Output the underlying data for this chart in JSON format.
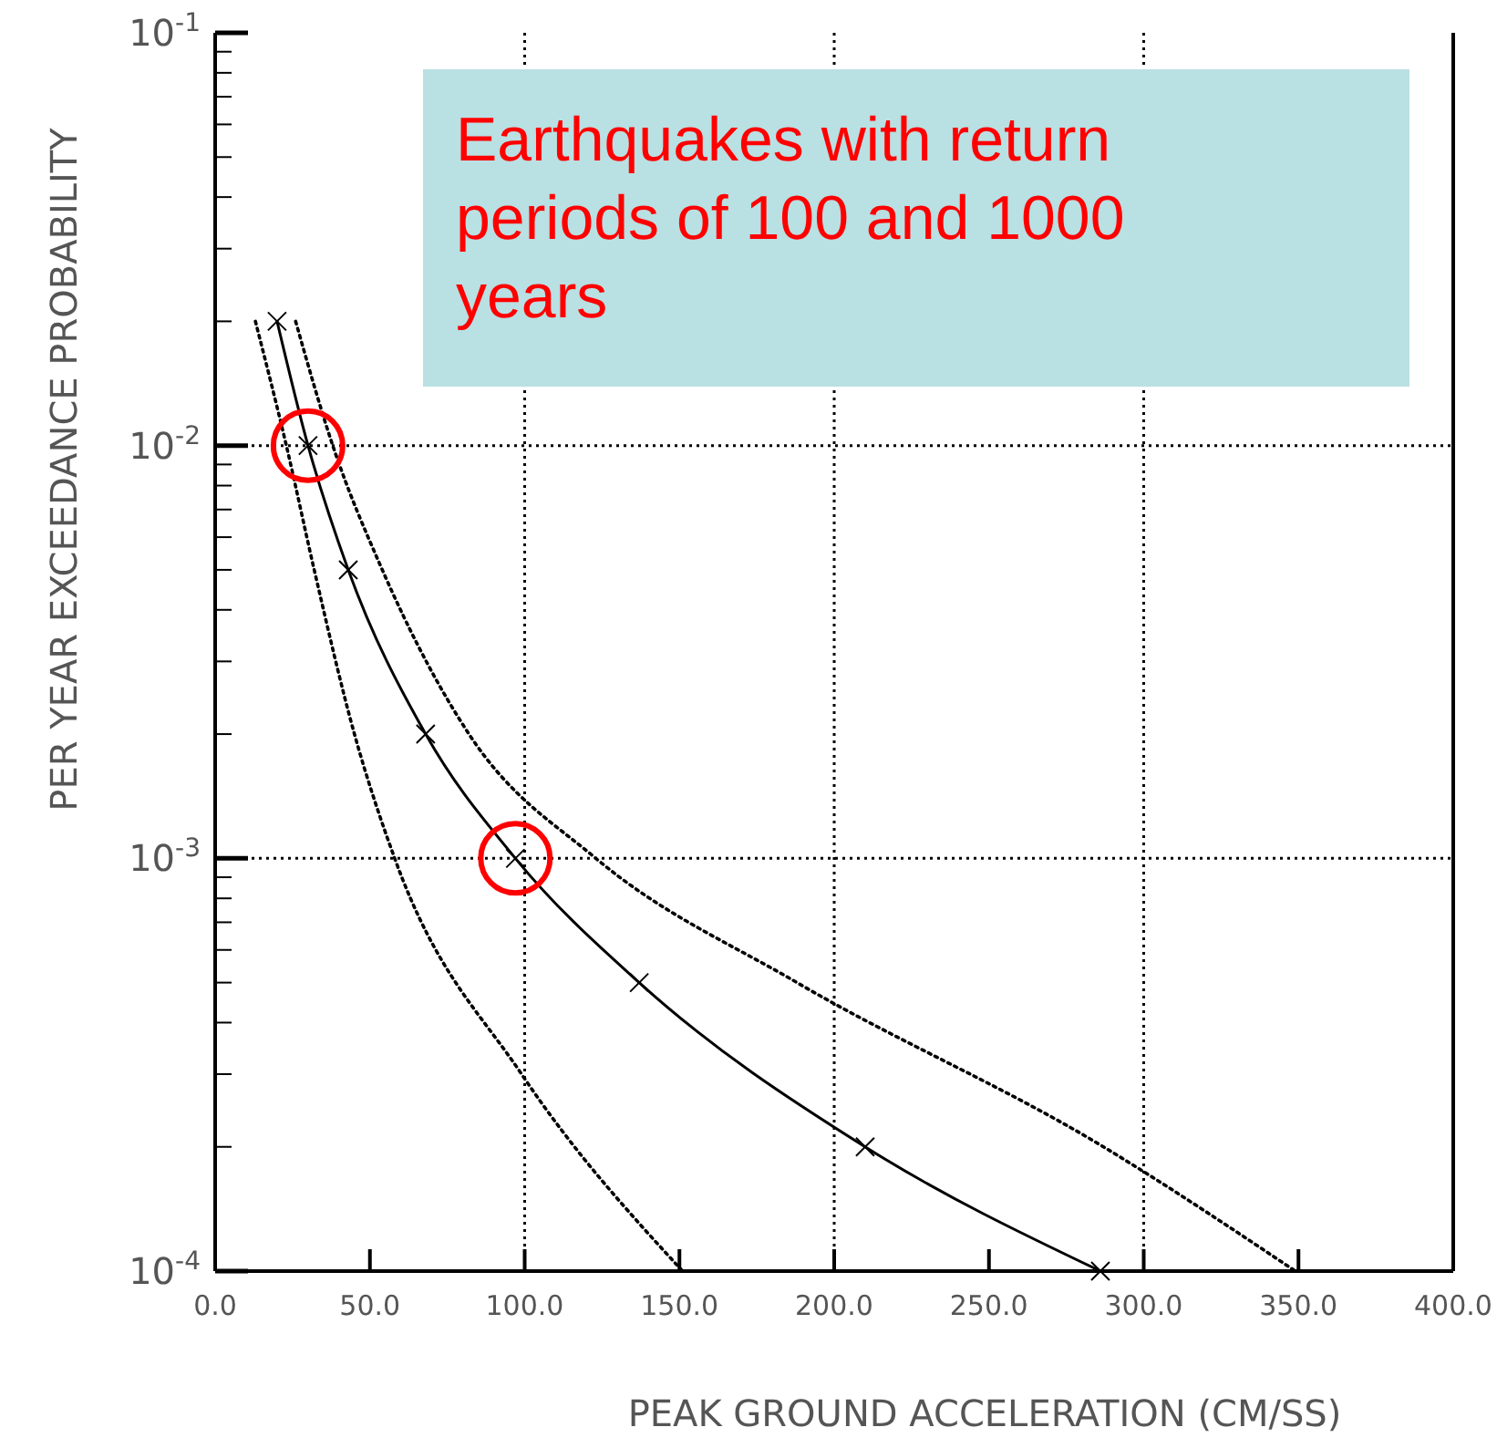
{
  "chart_data": {
    "type": "line",
    "xlabel": "PEAK GROUND ACCELERATION (CM/SS)",
    "ylabel": "PER YEAR EXCEEDANCE PROBABILITY",
    "annotations": [
      "Earthquakes with return periods of 100 and 1000 years"
    ],
    "log": "y",
    "grid": false,
    "xlim": [
      0,
      400
    ],
    "ylim": [
      0.0001,
      0.1
    ],
    "xticks": [
      {
        "value": 0,
        "label": "0.0"
      },
      {
        "value": 50,
        "label": "50.0"
      },
      {
        "value": 100,
        "label": "100.0"
      },
      {
        "value": 150,
        "label": "150.0"
      },
      {
        "value": 200,
        "label": "200.0"
      },
      {
        "value": 250,
        "label": "250.0"
      },
      {
        "value": 300,
        "label": "300.0"
      },
      {
        "value": 350,
        "label": "350.0"
      },
      {
        "value": 400,
        "label": "400.0"
      }
    ],
    "yticks": [
      {
        "value": 0.0001,
        "label": "10$^{-4}$"
      },
      {
        "value": 0.0002,
        "label": null
      },
      {
        "value": 0.0003,
        "label": null
      },
      {
        "value": 0.0004,
        "label": null
      },
      {
        "value": 0.0005,
        "label": null
      },
      {
        "value": 0.0006,
        "label": null
      },
      {
        "value": 0.0007,
        "label": null
      },
      {
        "value": 0.0008,
        "label": null
      },
      {
        "value": 0.0009,
        "label": null
      },
      {
        "value": 0.001,
        "label": "10$^{-3}$"
      },
      {
        "value": 0.002,
        "label": null
      },
      {
        "value": 0.003,
        "label": null
      },
      {
        "value": 0.004,
        "label": null
      },
      {
        "value": 0.005,
        "label": null
      },
      {
        "value": 0.006,
        "label": null
      },
      {
        "value": 0.007,
        "label": null
      },
      {
        "value": 0.008,
        "label": null
      },
      {
        "value": 0.009,
        "label": null
      },
      {
        "value": 0.01,
        "label": "10$^{-2}$"
      },
      {
        "value": 0.02,
        "label": null
      },
      {
        "value": 0.03,
        "label": null
      },
      {
        "value": 0.04,
        "label": null
      },
      {
        "value": 0.05,
        "label": null
      },
      {
        "value": 0.06,
        "label": null
      },
      {
        "value": 0.07,
        "label": null
      },
      {
        "value": 0.08,
        "label": null
      },
      {
        "value": 0.09,
        "label": null
      },
      {
        "value": 0.1,
        "label": "10$^{-1}$"
      }
    ],
    "ref_lines": [
      {
        "axis": "x",
        "value": 100,
        "line_style": "dotted",
        "color": "#000000"
      },
      {
        "axis": "x",
        "value": 200,
        "line_style": "dotted",
        "color": "#000000"
      },
      {
        "axis": "x",
        "value": 300,
        "line_style": "dotted",
        "color": "#000000"
      },
      {
        "axis": "y",
        "value": 0.01,
        "line_style": "dotted",
        "color": "#000000"
      },
      {
        "axis": "y",
        "value": 0.001,
        "line_style": "dotted",
        "color": "#000000"
      }
    ],
    "series": [
      {
        "color": "#000000",
        "line_style": "solid",
        "marker": "cross",
        "x": [
          20,
          30,
          43,
          68,
          97,
          137,
          210,
          286
        ],
        "values": [
          0.02,
          0.01,
          0.005,
          0.002,
          0.001,
          0.0005,
          0.0002,
          0.0001
        ]
      },
      {
        "color": "#000000",
        "line_style": "dotted",
        "marker": "none",
        "x": [
          13,
          23,
          32,
          45,
          58,
          99,
          151
        ],
        "values": [
          0.02,
          0.01,
          0.005,
          0.002,
          0.001,
          0.0003,
          0.0001
        ]
      },
      {
        "color": "#000000",
        "line_style": "dotted",
        "marker": "none",
        "x": [
          26,
          38,
          54,
          82,
          123,
          188,
          287,
          349
        ],
        "values": [
          0.02,
          0.01,
          0.005,
          0.002,
          0.001,
          0.0005,
          0.0002,
          0.0001
        ]
      }
    ]
  }
}
